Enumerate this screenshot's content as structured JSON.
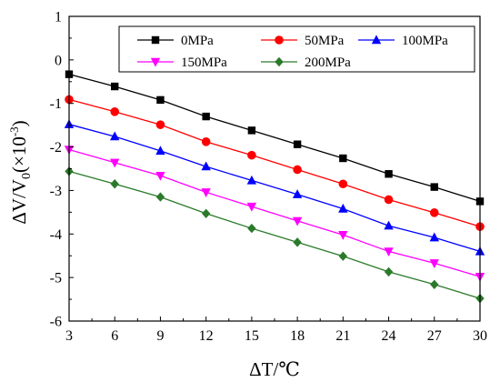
{
  "chart_data": {
    "type": "line",
    "title": "",
    "xlabel": "ΔT/℃",
    "ylabel_parts": {
      "main": "ΔV/V",
      "sub": "0",
      "paren_open": "(×10",
      "sup": "-3",
      "paren_close": ")"
    },
    "x": [
      3,
      6,
      9,
      12,
      15,
      18,
      21,
      24,
      27,
      30
    ],
    "xlim": [
      3,
      30
    ],
    "ylim": [
      -6,
      1
    ],
    "x_ticks": [
      "3",
      "6",
      "9",
      "12",
      "15",
      "18",
      "21",
      "24",
      "27",
      "30"
    ],
    "y_ticks": [
      "1",
      "0",
      "-1",
      "-2",
      "-3",
      "-4",
      "-5",
      "-6"
    ],
    "grid": false,
    "legend_position": "top-right",
    "series": [
      {
        "name": "0MPa",
        "color": "#000000",
        "marker": "square",
        "values": [
          -0.33,
          -0.61,
          -0.92,
          -1.3,
          -1.62,
          -1.94,
          -2.26,
          -2.62,
          -2.92,
          -3.25
        ]
      },
      {
        "name": "50MPa",
        "color": "#ff0000",
        "marker": "circle",
        "values": [
          -0.91,
          -1.19,
          -1.49,
          -1.88,
          -2.19,
          -2.52,
          -2.85,
          -3.21,
          -3.51,
          -3.83
        ]
      },
      {
        "name": "100MPa",
        "color": "#0000ff",
        "marker": "triangle-up",
        "values": [
          -1.48,
          -1.76,
          -2.09,
          -2.45,
          -2.77,
          -3.09,
          -3.42,
          -3.81,
          -4.08,
          -4.4
        ]
      },
      {
        "name": "150MPa",
        "color": "#ff00ff",
        "marker": "triangle-down",
        "values": [
          -2.06,
          -2.36,
          -2.66,
          -3.04,
          -3.37,
          -3.7,
          -4.02,
          -4.4,
          -4.67,
          -4.98
        ]
      },
      {
        "name": "200MPa",
        "color": "#2a7a2a",
        "marker": "diamond",
        "values": [
          -2.56,
          -2.85,
          -3.15,
          -3.53,
          -3.87,
          -4.19,
          -4.51,
          -4.87,
          -5.16,
          -5.48
        ]
      }
    ]
  }
}
